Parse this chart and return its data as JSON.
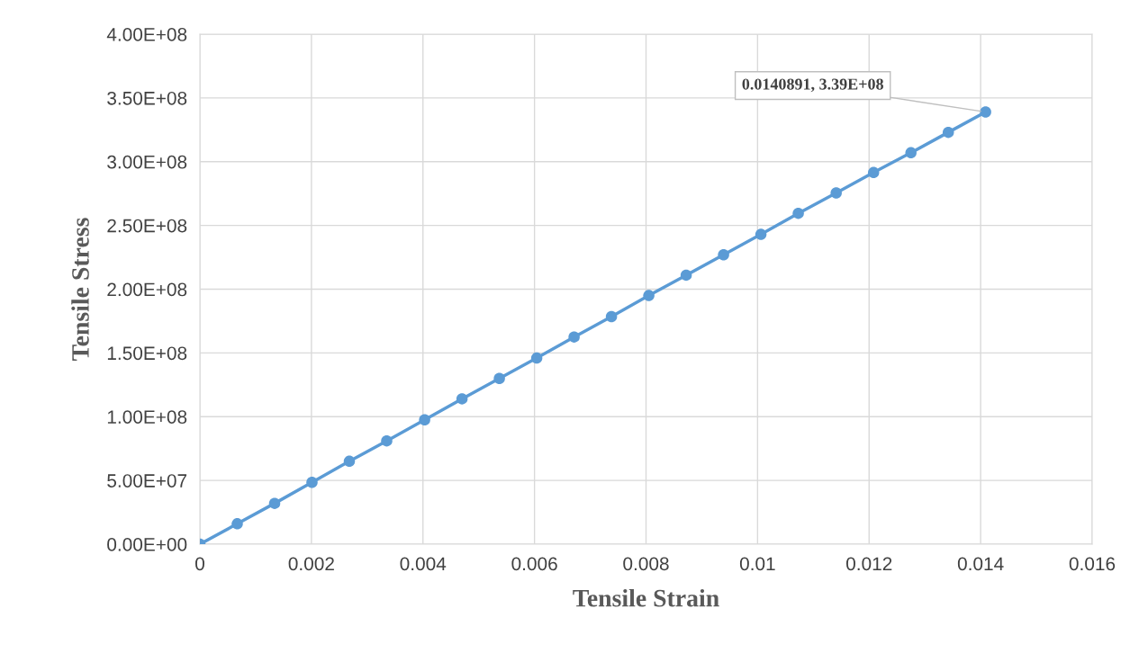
{
  "chart_data": {
    "type": "line",
    "xlabel": "Tensile Strain",
    "ylabel": "Tensile Stress",
    "x": [
      0,
      0.00067,
      0.00134,
      0.00201,
      0.00268,
      0.00335,
      0.00403,
      0.0047,
      0.00537,
      0.00604,
      0.00671,
      0.00738,
      0.00805,
      0.00872,
      0.00939,
      0.01006,
      0.01073,
      0.01141,
      0.01208,
      0.01275,
      0.01342,
      0.0140891
    ],
    "series": [
      {
        "color": "#5b9bd5",
        "marker": "circle",
        "line_style": "solid",
        "values": [
          0,
          16000000,
          32000000,
          48500000,
          65000000,
          81000000,
          97500000,
          114000000,
          130000000,
          146000000,
          162500000,
          178500000,
          195000000,
          211000000,
          227000000,
          243000000,
          259500000,
          275500000,
          291500000,
          307000000,
          323000000,
          339000000
        ]
      }
    ],
    "xlim": [
      0,
      0.016
    ],
    "xticks": [
      0,
      0.002,
      0.004,
      0.006,
      0.008,
      0.01,
      0.012,
      0.014,
      0.016
    ],
    "ylim": [
      0,
      400000000
    ],
    "yticks": [
      {
        "value": 0,
        "label": "0.00E+00"
      },
      {
        "value": 50000000,
        "label": "5.00E+07"
      },
      {
        "value": 100000000,
        "label": "1.00E+08"
      },
      {
        "value": 150000000,
        "label": "1.50E+08"
      },
      {
        "value": 200000000,
        "label": "2.00E+08"
      },
      {
        "value": 250000000,
        "label": "2.50E+08"
      },
      {
        "value": 300000000,
        "label": "3.00E+08"
      },
      {
        "value": 350000000,
        "label": "3.50E+08"
      },
      {
        "value": 400000000,
        "label": "4.00E+08"
      }
    ],
    "grid": true,
    "annotations": [
      {
        "text": "0.0140891, 3.39E+08",
        "x": 0.0140891,
        "y": 339000000
      }
    ]
  }
}
